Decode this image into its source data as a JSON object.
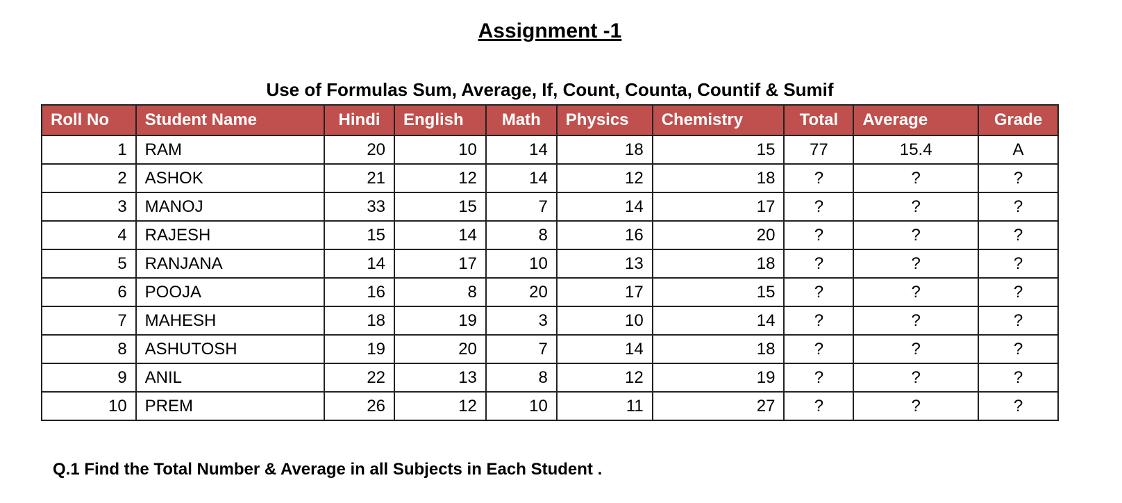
{
  "title": "Assignment -1",
  "subtitle": "Use of Formulas Sum, Average, If, Count, Counta, Countif & Sumif",
  "header_color": "#c0504d",
  "columns": [
    "Roll No",
    "Student Name",
    "Hindi",
    "English",
    "Math",
    "Physics",
    "Chemistry",
    "Total",
    "Average",
    "Grade"
  ],
  "rows": [
    [
      "1",
      "RAM",
      "20",
      "10",
      "14",
      "18",
      "15",
      "77",
      "15.4",
      "A"
    ],
    [
      "2",
      "ASHOK",
      "21",
      "12",
      "14",
      "12",
      "18",
      "?",
      "?",
      "?"
    ],
    [
      "3",
      "MANOJ",
      "33",
      "15",
      "7",
      "14",
      "17",
      "?",
      "?",
      "?"
    ],
    [
      "4",
      "RAJESH",
      "15",
      "14",
      "8",
      "16",
      "20",
      "?",
      "?",
      "?"
    ],
    [
      "5",
      "RANJANA",
      "14",
      "17",
      "10",
      "13",
      "18",
      "?",
      "?",
      "?"
    ],
    [
      "6",
      "POOJA",
      "16",
      "8",
      "20",
      "17",
      "15",
      "?",
      "?",
      "?"
    ],
    [
      "7",
      "MAHESH",
      "18",
      "19",
      "3",
      "10",
      "14",
      "?",
      "?",
      "?"
    ],
    [
      "8",
      "ASHUTOSH",
      "19",
      "20",
      "7",
      "14",
      "18",
      "?",
      "?",
      "?"
    ],
    [
      "9",
      "ANIL",
      "22",
      "13",
      "8",
      "12",
      "19",
      "?",
      "?",
      "?"
    ],
    [
      "10",
      "PREM",
      "26",
      "12",
      "10",
      "11",
      "27",
      "?",
      "?",
      "?"
    ]
  ],
  "question": "Q.1 Find the Total Number & Average in all Subjects in Each Student ."
}
